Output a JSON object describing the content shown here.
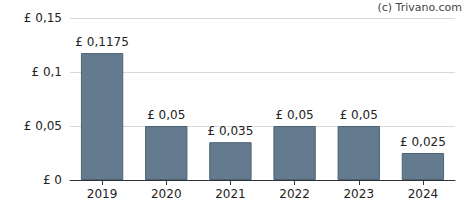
{
  "chart_data": {
    "type": "bar",
    "annotation": "(c) Trivano.com",
    "categories": [
      "2019",
      "2020",
      "2021",
      "2022",
      "2023",
      "2024"
    ],
    "values": [
      0.1175,
      0.05,
      0.035,
      0.05,
      0.05,
      0.025
    ],
    "value_labels": [
      "£ 0,1175",
      "£ 0,05",
      "£ 0,035",
      "£ 0,05",
      "£ 0,05",
      "£ 0,025"
    ],
    "data_labels": true,
    "color": "#637a8f",
    "ylim": [
      0,
      0.15
    ],
    "yticks": [
      {
        "value": 0,
        "label": "£ 0"
      },
      {
        "value": 0.05,
        "label": "£ 0,05"
      },
      {
        "value": 0.1,
        "label": "£ 0,1"
      },
      {
        "value": 0.15,
        "label": "£ 0,15"
      }
    ],
    "grid": true
  }
}
